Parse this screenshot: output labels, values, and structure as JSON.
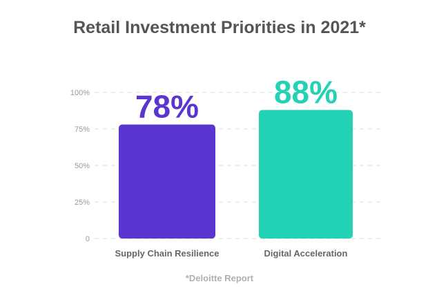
{
  "chart_data": {
    "type": "bar",
    "title": "Retail Investment Priorities in 2021*",
    "categories": [
      "Supply Chain Resilience",
      "Digital Acceleration"
    ],
    "values": [
      78,
      88
    ],
    "data_labels": [
      "78%",
      "88%"
    ],
    "colors": [
      "#5b35cf",
      "#23d1b5"
    ],
    "ylim": [
      0,
      100
    ],
    "yticks": [
      0,
      25,
      50,
      75,
      100
    ],
    "ytick_labels": [
      "0",
      "25%",
      "50%",
      "75%",
      "100%"
    ],
    "grid": "dashed horizontal",
    "xlabel": "",
    "ylabel": "",
    "footnote": "*Deloitte Report"
  }
}
